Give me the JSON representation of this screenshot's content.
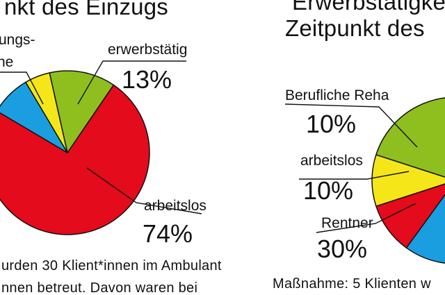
{
  "chart_data": [
    {
      "type": "pie",
      "title": "nkt des Einzugs",
      "slices": [
        {
          "name": "arbeitslos",
          "value": 74,
          "label": "arbeitslos",
          "pct": "74%",
          "color": "#e30b1c"
        },
        {
          "name": "",
          "value": 8,
          "label": "",
          "pct": "",
          "color": "#1a9ee0"
        },
        {
          "name": "",
          "value": 5,
          "label": "ungs-",
          "label2": "ne",
          "pct": "",
          "color": "#f5e61a"
        },
        {
          "name": "erwerbstätig",
          "value": 13,
          "label": "erwerbstätig",
          "pct": "13%",
          "color": "#8fbf1f"
        }
      ]
    },
    {
      "type": "pie",
      "title_line1": "Erwerbstätigke",
      "title_line2": "Zeitpunkt des",
      "slices": [
        {
          "name": "Rentner",
          "value": 30,
          "label": "Rentner",
          "pct": "30%",
          "color": "#1a9ee0"
        },
        {
          "name": "arbeitslos",
          "value": 10,
          "label": "arbeitslos",
          "pct": "10%",
          "color": "#e30b1c"
        },
        {
          "name": "Berufliche Reha",
          "value": 10,
          "label": "Berufliche Reha",
          "pct": "10%",
          "color": "#f5e61a"
        },
        {
          "name": "",
          "value": 50,
          "label": "",
          "pct": "",
          "color": "#8fbf1f"
        }
      ]
    }
  ],
  "text": {
    "body_left_1": "urden 30 Klient*innen im Ambulant",
    "body_left_2": "nnen betreut. Davon waren bei",
    "body_right": "Maßnahme: 5 Klienten w"
  }
}
